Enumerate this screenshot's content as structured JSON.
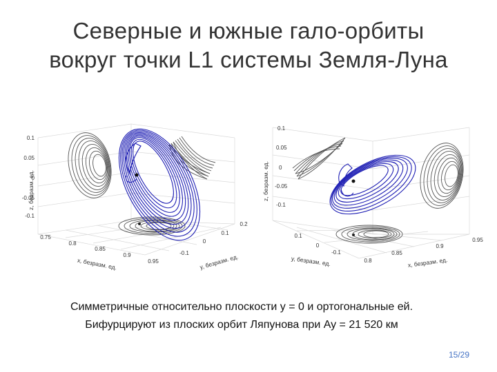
{
  "slide": {
    "title_line1": "Северные и южные гало-орбиты",
    "title_line2": "вокруг точки L1 системы Земля-Луна",
    "caption_line1": "Симметричные относительно плоскости y = 0 и ортогональные ей.",
    "caption_line2": "Бифурцируют из плоских орбит Ляпунова при Ay = 21 520 км",
    "page_number": "15/29"
  },
  "colors": {
    "orbit_main": "#1f1fb4",
    "projection": "#555555",
    "grid": "#d9d9d9",
    "title_text": "#333333",
    "page_number": "#4472c4"
  },
  "figures": [
    {
      "variant": "north",
      "zlabel": "z, безразм. ед.",
      "xlabel": "x, безразм. ед.",
      "ylabel": "y, безразм. ед.",
      "z_ticks": [
        "0.1",
        "0.05",
        "0",
        "-0.05",
        "-0.1"
      ],
      "x_ticks": [
        "0.75",
        "0.8",
        "0.85",
        "0.9",
        "0.95"
      ],
      "y_ticks": [
        "-0.1",
        "0",
        "0.1",
        "0.2"
      ]
    },
    {
      "variant": "south",
      "zlabel": "z, безразм. ед.",
      "xlabel": "x, безразм. ед.",
      "ylabel": "y, безразм. ед.",
      "z_ticks": [
        "0.1",
        "0.05",
        "0",
        "-0.05",
        "-0.1"
      ],
      "x_ticks": [
        "0.8",
        "0.85",
        "0.9",
        "0.95"
      ],
      "y_ticks": [
        "0.1",
        "0",
        "-0.1"
      ]
    }
  ]
}
